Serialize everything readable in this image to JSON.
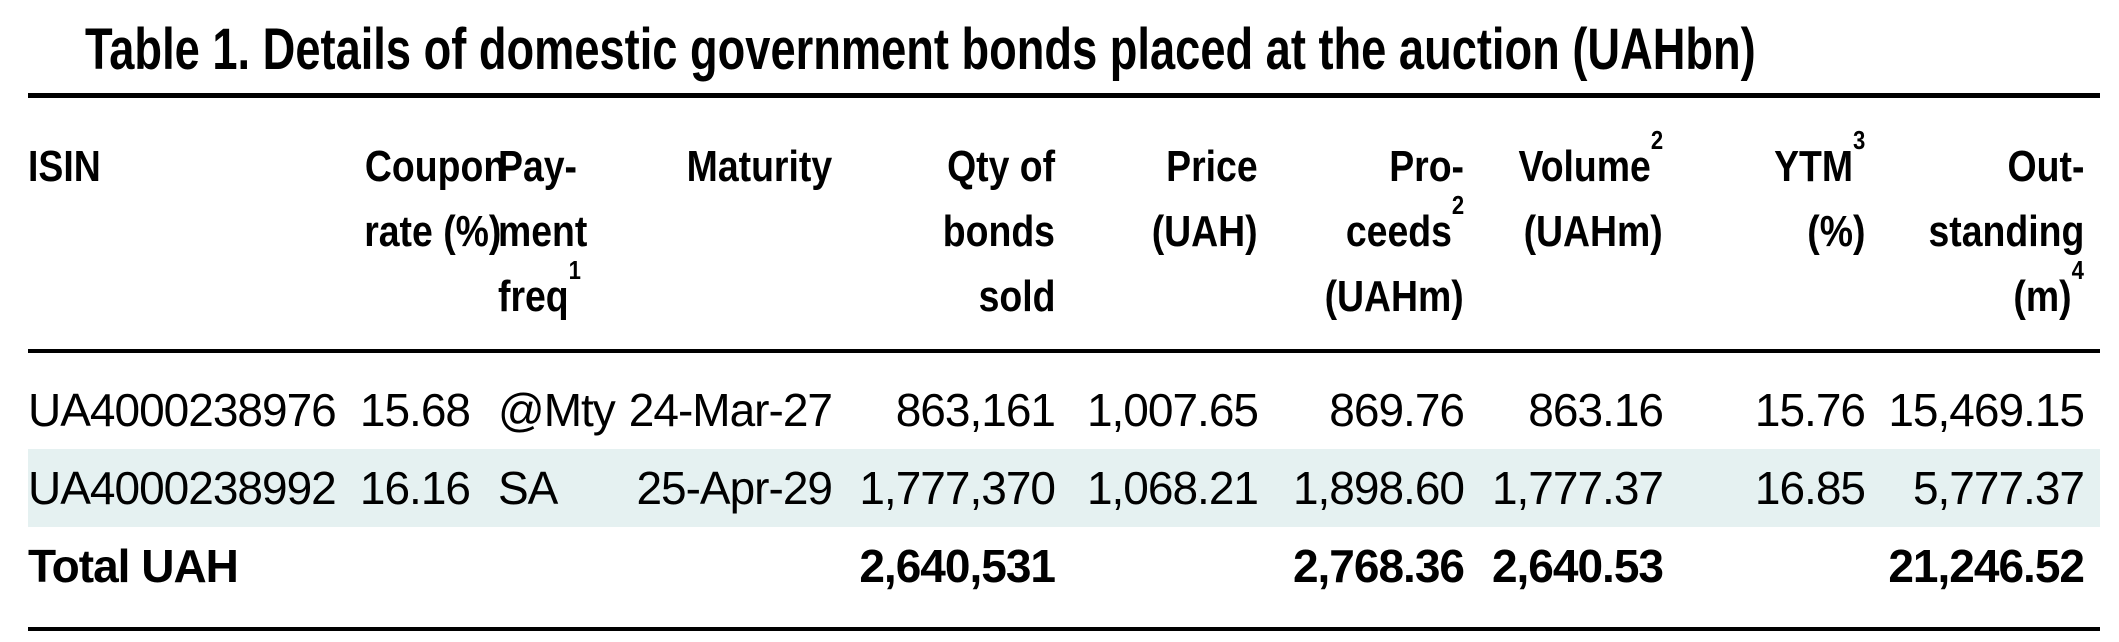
{
  "title": "Table 1. Details of domestic government bonds placed at the auction (UAHbn)",
  "colors": {
    "row_highlight": "#e5f1f1",
    "rule": "#000000",
    "text": "#000000"
  },
  "table": {
    "columns": [
      {
        "id": "isin",
        "align": "left",
        "label_lines": [
          {
            "t": "ISIN"
          }
        ]
      },
      {
        "id": "coupon",
        "align": "right",
        "label_lines": [
          {
            "t": "Coupon"
          },
          {
            "t": "rate (%)"
          }
        ]
      },
      {
        "id": "freq",
        "align": "left",
        "label_lines": [
          {
            "t": "Pay-"
          },
          {
            "t": "ment"
          },
          {
            "t": "freq",
            "sup": "1"
          }
        ]
      },
      {
        "id": "maturity",
        "align": "right",
        "label_lines": [
          {
            "t": "Maturity"
          }
        ]
      },
      {
        "id": "qty",
        "align": "right",
        "label_lines": [
          {
            "t": "Qty of"
          },
          {
            "t": "bonds"
          },
          {
            "t": "sold"
          }
        ]
      },
      {
        "id": "price",
        "align": "right",
        "label_lines": [
          {
            "t": "Price"
          },
          {
            "t": "(UAH)"
          }
        ]
      },
      {
        "id": "proceeds",
        "align": "right",
        "label_lines": [
          {
            "t": "Pro-"
          },
          {
            "t": "ceeds",
            "sup": "2"
          },
          {
            "t": "(UAHm)"
          }
        ]
      },
      {
        "id": "volume",
        "align": "right",
        "label_lines": [
          {
            "t": "Volume",
            "sup": "2"
          },
          {
            "t": "(UAHm)"
          }
        ]
      },
      {
        "id": "ytm",
        "align": "right",
        "label_lines": [
          {
            "t": "YTM",
            "sup": "3"
          },
          {
            "t": "(%)"
          }
        ]
      },
      {
        "id": "outstanding",
        "align": "right",
        "label_lines": [
          {
            "t": "Out-"
          },
          {
            "t": "standing"
          },
          {
            "t": "(m)",
            "sup": "4"
          }
        ]
      }
    ],
    "rows": [
      {
        "isin": "UA4000238976",
        "coupon": "15.68",
        "freq": "@Mty",
        "maturity": "24-Mar-27",
        "qty": "863,161",
        "price": "1,007.65",
        "proceeds": "869.76",
        "volume": "863.16",
        "ytm": "15.76",
        "outstanding": "15,469.15",
        "highlighted": false
      },
      {
        "isin": "UA4000238992",
        "coupon": "16.16",
        "freq": "SA",
        "maturity": "25-Apr-29",
        "qty": "1,777,370",
        "price": "1,068.21",
        "proceeds": "1,898.60",
        "volume": "1,777.37",
        "ytm": "16.85",
        "outstanding": "5,777.37",
        "highlighted": true
      }
    ],
    "total_row": {
      "label": "Total UAH",
      "qty": "2,640,531",
      "proceeds": "2,768.36",
      "volume": "2,640.53",
      "outstanding": "21,246.52"
    }
  }
}
